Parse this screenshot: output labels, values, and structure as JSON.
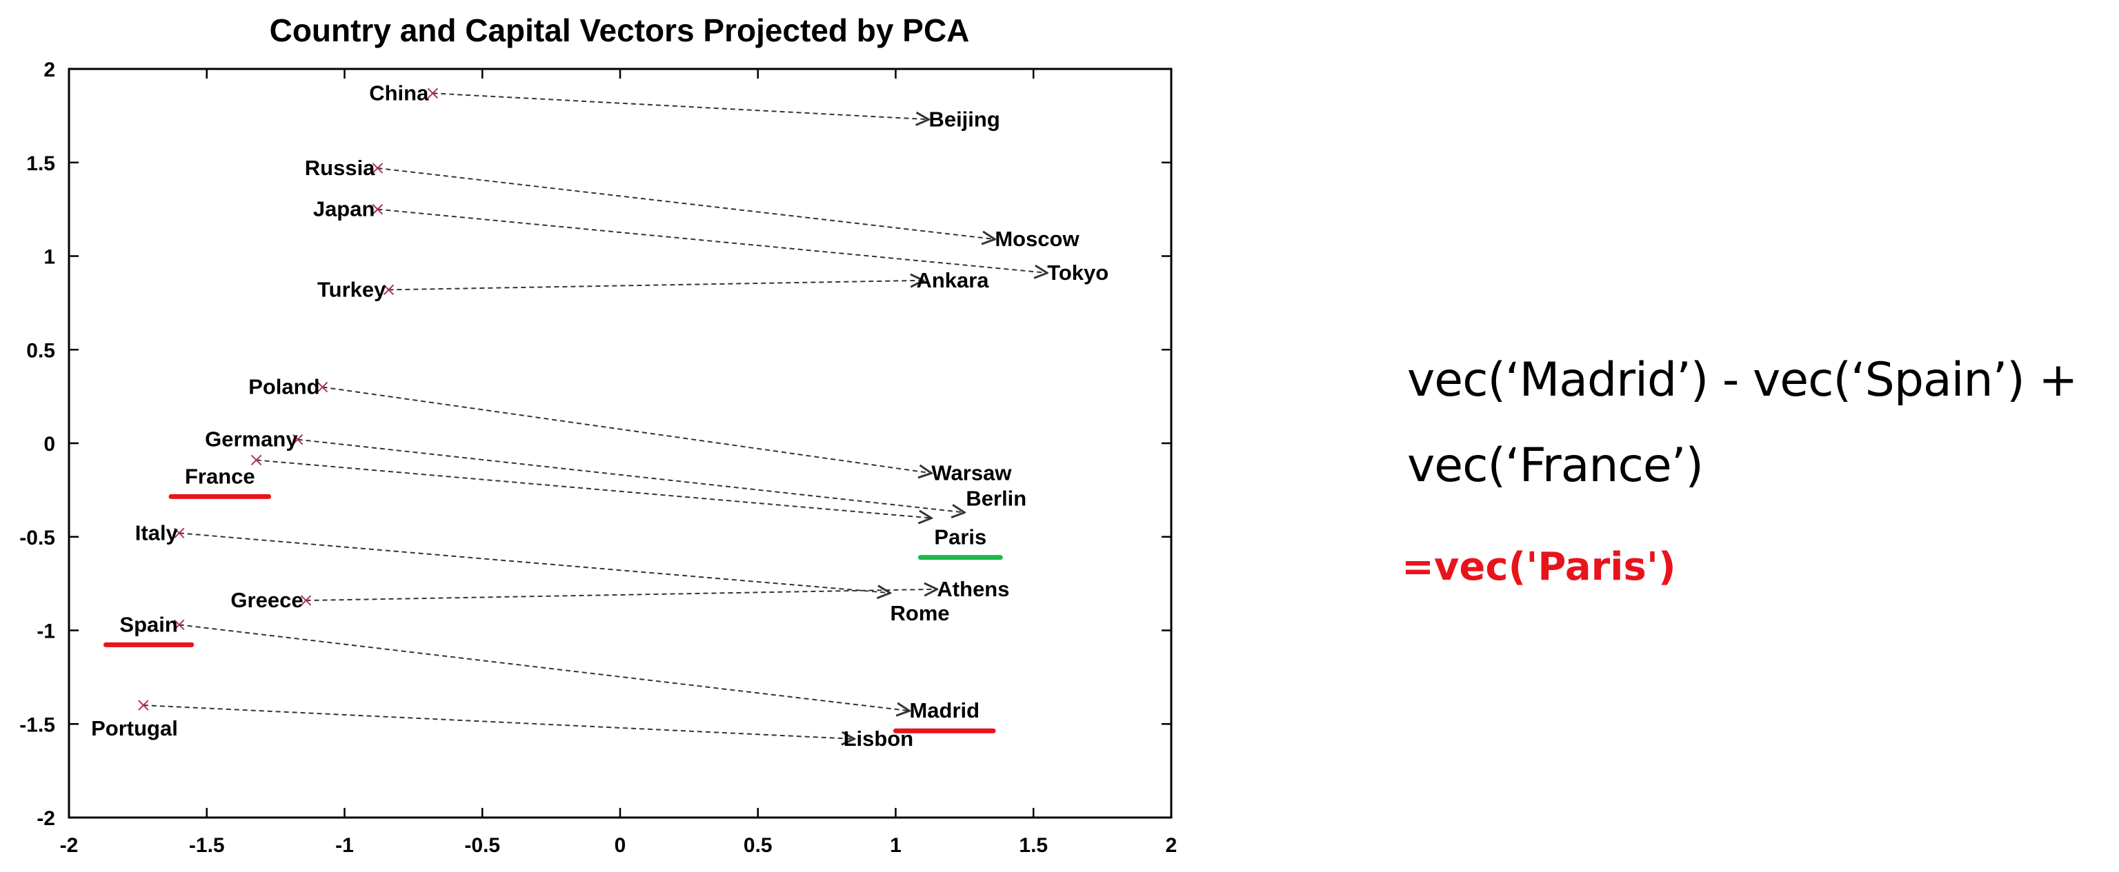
{
  "colors": {
    "accent_red": "#e8141c",
    "accent_green": "#1fb84a",
    "arrow": "#333333",
    "marker": "#b03060"
  },
  "chart_data": {
    "type": "scatter",
    "title": "Country and Capital Vectors Projected by PCA",
    "xlabel": "",
    "ylabel": "",
    "xlim": [
      -2,
      2
    ],
    "ylim": [
      -2,
      2
    ],
    "xticks": [
      "-2",
      "-1.5",
      "-1",
      "-0.5",
      "0",
      "0.5",
      "1",
      "1.5",
      "2"
    ],
    "yticks": [
      "2",
      "1.5",
      "1",
      "0.5",
      "0",
      "-0.5",
      "-1",
      "-1.5",
      "-2"
    ],
    "grid": false,
    "pairs": [
      {
        "country": "China",
        "cx": -0.68,
        "cy": 1.87,
        "capital": "Beijing",
        "kx": 1.12,
        "ky": 1.73
      },
      {
        "country": "Russia",
        "cx": -0.88,
        "cy": 1.47,
        "capital": "Moscow",
        "kx": 1.36,
        "ky": 1.09
      },
      {
        "country": "Japan",
        "cx": -0.88,
        "cy": 1.25,
        "capital": "Tokyo",
        "kx": 1.55,
        "ky": 0.91
      },
      {
        "country": "Turkey",
        "cx": -0.84,
        "cy": 0.82,
        "capital": "Ankara",
        "kx": 1.1,
        "ky": 0.87
      },
      {
        "country": "Poland",
        "cx": -1.08,
        "cy": 0.3,
        "capital": "Warsaw",
        "kx": 1.13,
        "ky": -0.16
      },
      {
        "country": "Germany",
        "cx": -1.17,
        "cy": 0.02,
        "capital": "Berlin",
        "kx": 1.25,
        "ky": -0.37
      },
      {
        "country": "France",
        "cx": -1.32,
        "cy": -0.09,
        "capital": "Paris",
        "kx": 1.13,
        "ky": -0.4
      },
      {
        "country": "Italy",
        "cx": -1.6,
        "cy": -0.48,
        "capital": "Rome",
        "kx": 0.98,
        "ky": -0.8
      },
      {
        "country": "Greece",
        "cx": -1.14,
        "cy": -0.84,
        "capital": "Athens",
        "kx": 1.15,
        "ky": -0.78
      },
      {
        "country": "Spain",
        "cx": -1.6,
        "cy": -0.97,
        "capital": "Madrid",
        "kx": 1.05,
        "ky": -1.43
      },
      {
        "country": "Portugal",
        "cx": -1.73,
        "cy": -1.4,
        "capital": "Lisbon",
        "kx": 0.85,
        "ky": -1.58
      }
    ],
    "highlighted_red": [
      "France",
      "Spain",
      "Madrid"
    ],
    "highlighted_green": [
      "Paris"
    ]
  },
  "equation": {
    "line1": "vec(‘Madrid’) - vec(‘Spain’) +",
    "line2": "vec(‘France’)",
    "result": "=vec('Paris')"
  }
}
